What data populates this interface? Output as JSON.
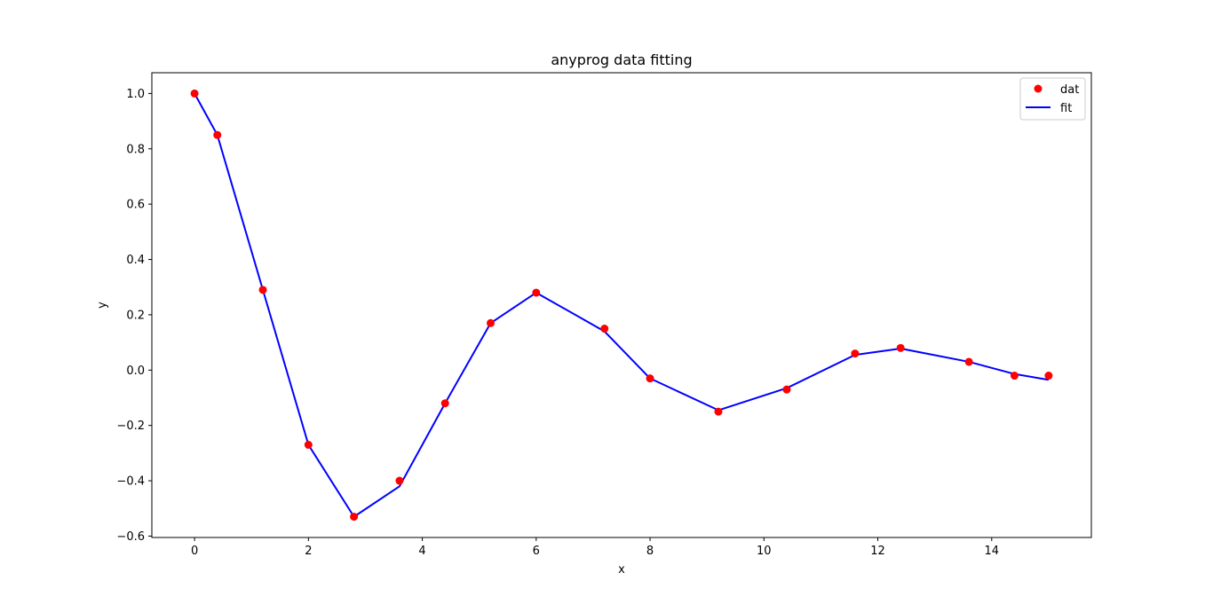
{
  "chart_data": {
    "type": "line",
    "title": "anyprog data fitting",
    "xlabel": "x",
    "ylabel": "y",
    "xlim": [
      -0.75,
      15.75
    ],
    "ylim": [
      -0.605,
      1.075
    ],
    "xticks": [
      0,
      2,
      4,
      6,
      8,
      10,
      12,
      14
    ],
    "yticks": [
      -0.6,
      -0.4,
      -0.2,
      0.0,
      0.2,
      0.4,
      0.6,
      0.8,
      1.0
    ],
    "ytick_labels": [
      "−0.6",
      "−0.4",
      "−0.2",
      "0.0",
      "0.2",
      "0.4",
      "0.6",
      "0.8",
      "1.0"
    ],
    "grid": false,
    "legend_position": "top-right",
    "series": [
      {
        "name": "dat",
        "kind": "scatter",
        "color": "#ff0000",
        "x": [
          0,
          0.4,
          1.2,
          2.0,
          2.8,
          3.6,
          4.4,
          5.2,
          6.0,
          7.2,
          8.0,
          9.2,
          10.4,
          11.6,
          12.4,
          13.6,
          14.4,
          15.0
        ],
        "y": [
          1.0,
          0.85,
          0.29,
          -0.27,
          -0.53,
          -0.4,
          -0.12,
          0.17,
          0.28,
          0.15,
          -0.03,
          -0.15,
          -0.07,
          0.06,
          0.08,
          0.03,
          -0.02,
          -0.02
        ]
      },
      {
        "name": "fit",
        "kind": "line",
        "color": "#0000ff",
        "x": [
          0,
          0.4,
          1.2,
          2.0,
          2.8,
          3.6,
          4.4,
          5.2,
          6.0,
          7.2,
          8.0,
          9.2,
          10.4,
          11.6,
          12.4,
          13.6,
          14.4,
          15.0
        ],
        "y": [
          1.0,
          0.85,
          0.29,
          -0.27,
          -0.53,
          -0.42,
          -0.12,
          0.17,
          0.28,
          0.14,
          -0.03,
          -0.145,
          -0.065,
          0.055,
          0.078,
          0.03,
          -0.014,
          -0.035
        ]
      }
    ]
  }
}
